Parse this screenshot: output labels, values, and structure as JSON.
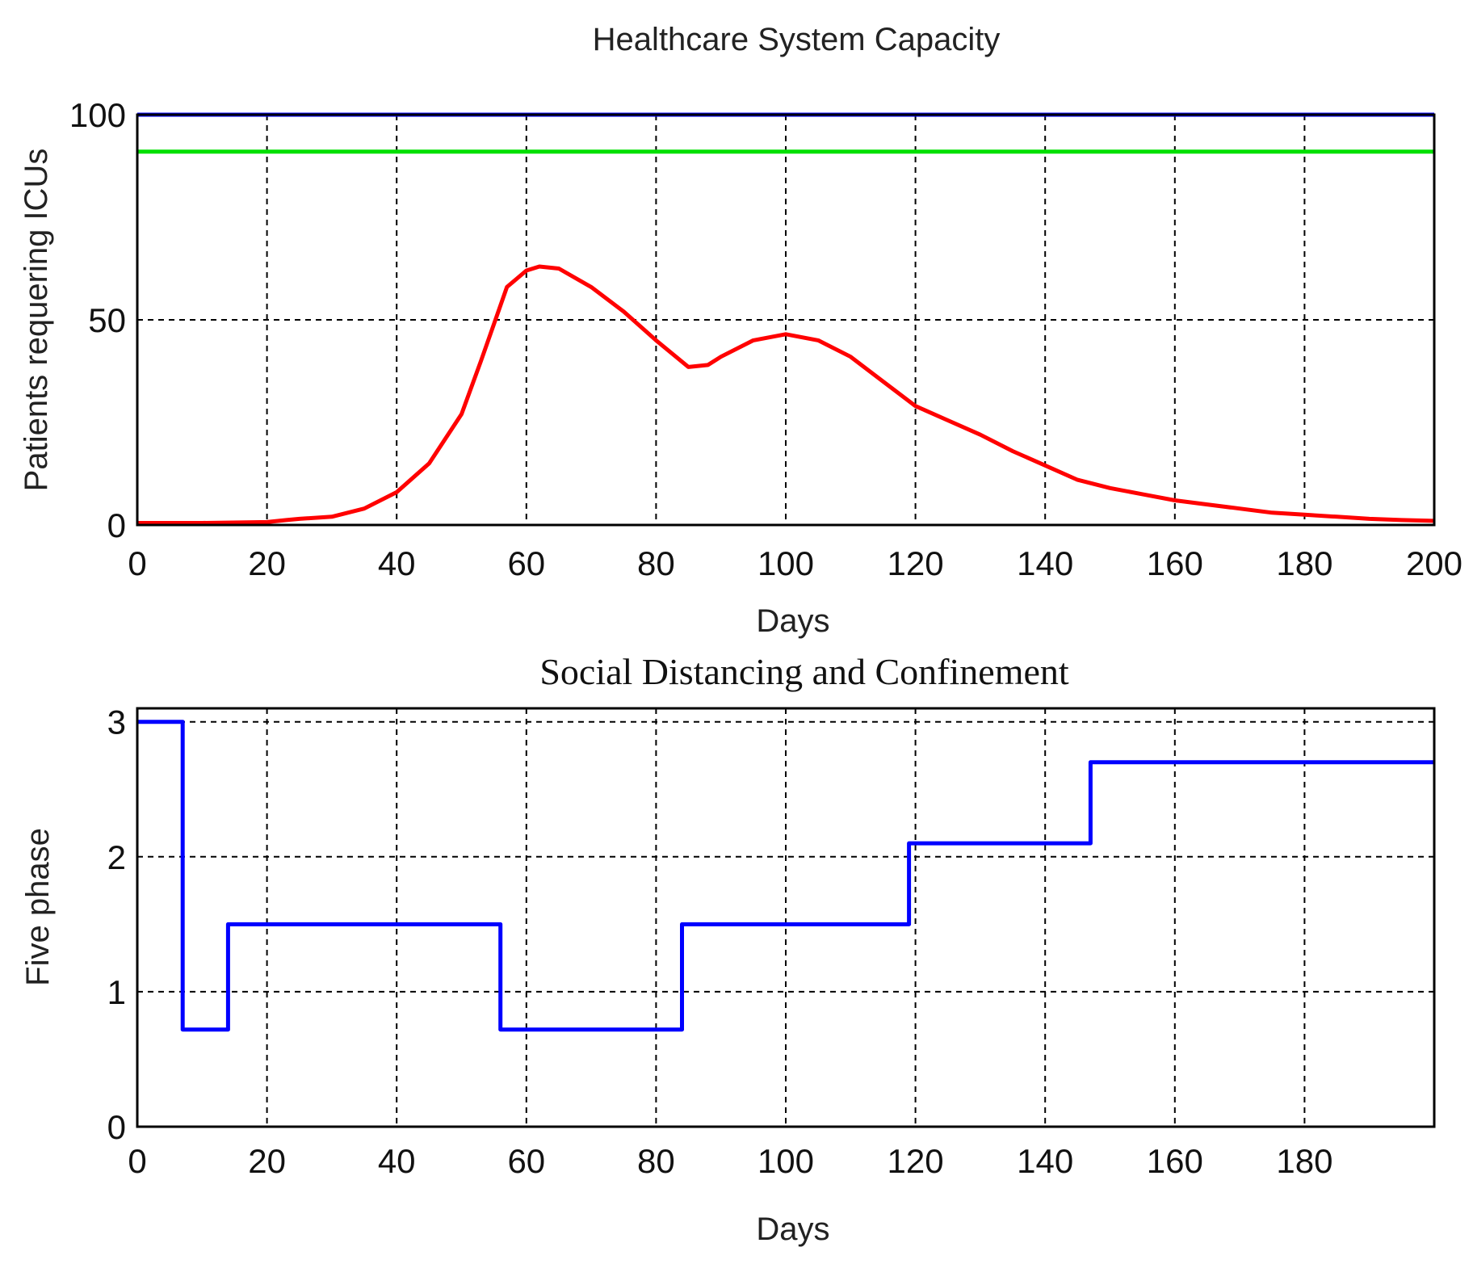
{
  "chart_data": [
    {
      "type": "line",
      "title": "Healthcare System Capacity",
      "xlabel": "Days",
      "ylabel": "Patients requering ICUs",
      "xlim": [
        0,
        200
      ],
      "ylim": [
        0,
        100
      ],
      "xticks": [
        0,
        20,
        40,
        60,
        80,
        100,
        120,
        140,
        160,
        180,
        200
      ],
      "yticks": [
        0,
        50,
        100
      ],
      "grid": true,
      "series": [
        {
          "color": "#0000ff",
          "x": [
            0,
            200
          ],
          "values": [
            100,
            100
          ]
        },
        {
          "color": "#00e000",
          "x": [
            0,
            200
          ],
          "values": [
            91,
            91
          ]
        },
        {
          "color": "#ff0000",
          "x": [
            0,
            10,
            20,
            23,
            25,
            30,
            35,
            40,
            45,
            50,
            53,
            55,
            57,
            60,
            62,
            65,
            70,
            75,
            80,
            85,
            88,
            90,
            95,
            100,
            105,
            110,
            115,
            120,
            125,
            130,
            135,
            140,
            145,
            150,
            155,
            160,
            165,
            170,
            175,
            180,
            185,
            190,
            195,
            200
          ],
          "values": [
            0.5,
            0.5,
            0.7,
            1.2,
            1.5,
            2,
            4,
            8,
            15,
            27,
            40,
            49,
            58,
            62,
            63,
            62.5,
            58,
            52,
            45,
            38.5,
            39,
            41,
            45,
            46.5,
            45,
            41,
            35,
            29,
            25.5,
            22,
            18,
            14.5,
            11,
            9,
            7.5,
            6,
            5,
            4,
            3,
            2.5,
            2,
            1.5,
            1.2,
            1
          ]
        }
      ]
    },
    {
      "type": "line",
      "title": "Social Distancing and Confinement",
      "xlabel": "Days",
      "ylabel": "Five phase",
      "xlim": [
        0,
        200
      ],
      "ylim": [
        0,
        3.1
      ],
      "xticks": [
        0,
        20,
        40,
        60,
        80,
        100,
        120,
        140,
        160,
        180
      ],
      "yticks": [
        0,
        1,
        2,
        3
      ],
      "grid": true,
      "series": [
        {
          "color": "#0000ff",
          "x": [
            0,
            7,
            7,
            14,
            14,
            56,
            56,
            84,
            84,
            119,
            119,
            147,
            147,
            200
          ],
          "values": [
            3,
            3,
            0.72,
            0.72,
            1.5,
            1.5,
            0.72,
            0.72,
            1.5,
            1.5,
            2.1,
            2.1,
            2.7,
            2.7
          ]
        }
      ]
    }
  ]
}
